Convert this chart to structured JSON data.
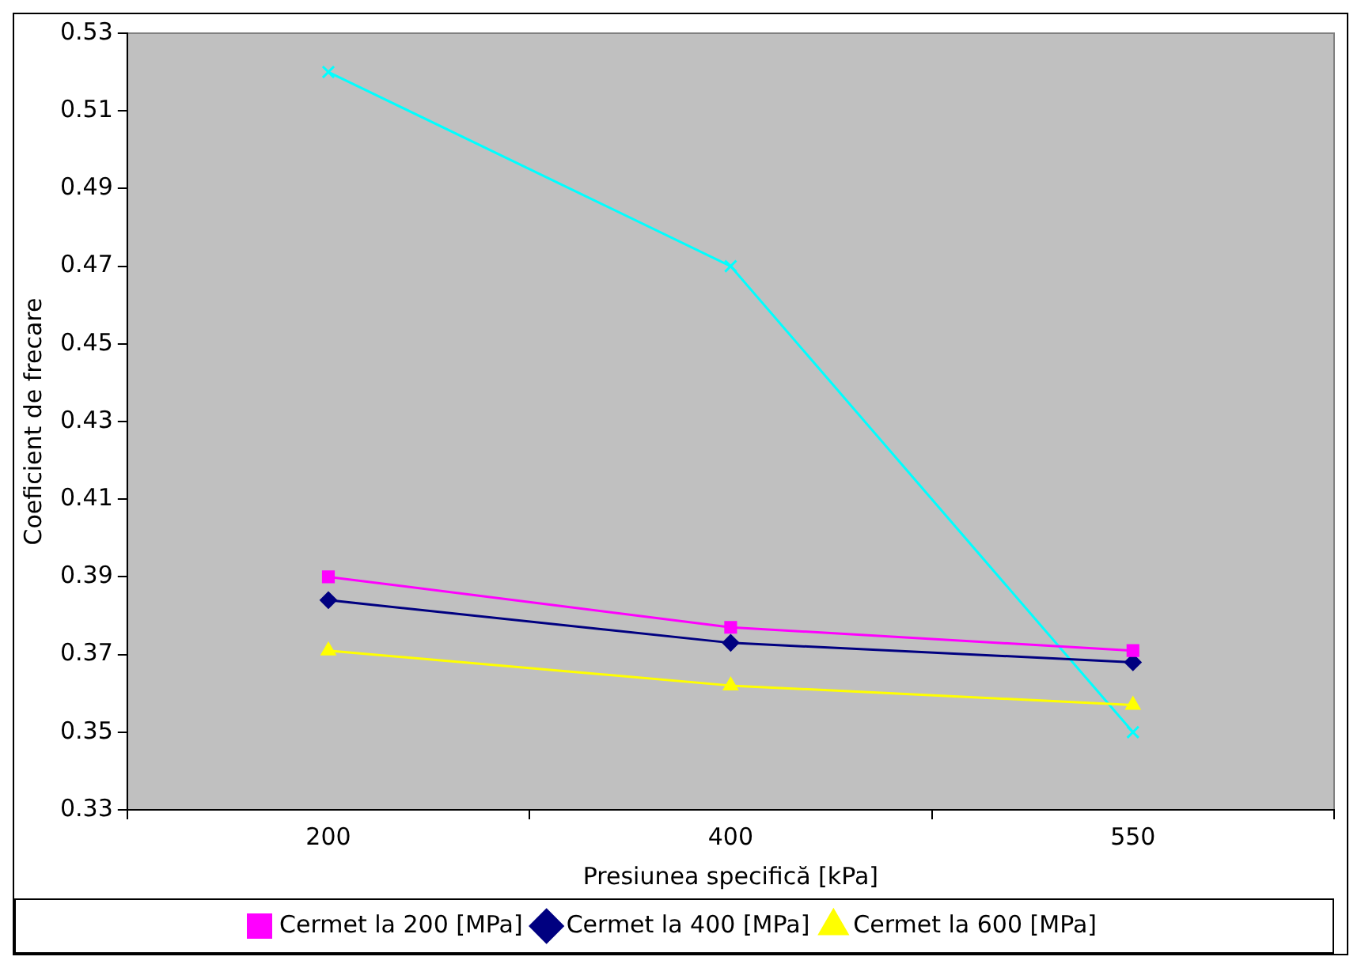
{
  "chart_data": {
    "type": "line",
    "xlabel": "Presiunea specifică [kPa]",
    "ylabel": "Coeficient de frecare",
    "categories": [
      "200",
      "400",
      "550"
    ],
    "series": [
      {
        "name": "Cermet la 200 [MPa]",
        "color": "#ff00ff",
        "marker": "square",
        "values": [
          0.39,
          0.377,
          0.371
        ]
      },
      {
        "name": "Cermet la 400 [MPa]",
        "color": "#000080",
        "marker": "diamond",
        "values": [
          0.384,
          0.373,
          0.368
        ]
      },
      {
        "name": "Cermet la 600 [MPa]",
        "color": "#ffff00",
        "marker": "triangle",
        "values": [
          0.371,
          0.362,
          0.357
        ]
      },
      {
        "color": "#00ffff",
        "marker": "cross",
        "values": [
          0.52,
          0.47,
          0.35
        ]
      }
    ],
    "ylim": [
      0.33,
      0.53
    ],
    "yticks": [
      0.33,
      0.35,
      0.37,
      0.39,
      0.41,
      0.43,
      0.45,
      0.47,
      0.49,
      0.51,
      0.53
    ],
    "grid": false,
    "legend": "bottom"
  }
}
